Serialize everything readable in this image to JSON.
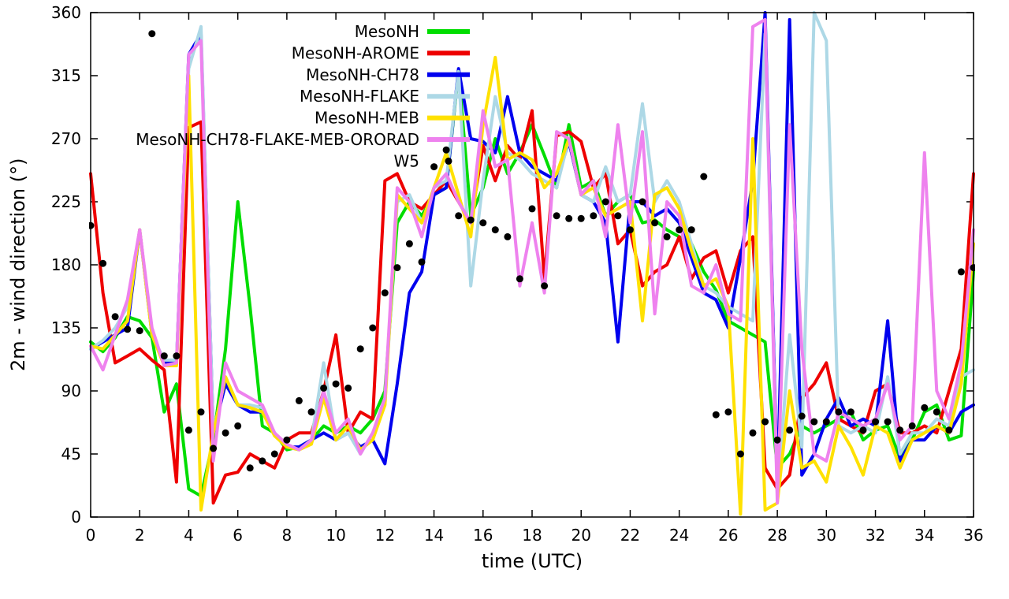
{
  "chart_data": {
    "type": "line",
    "title": "",
    "xlabel": "time (UTC)",
    "ylabel": "2m - wind direction (°)",
    "x_range": [
      0,
      36
    ],
    "y_range": [
      0,
      360
    ],
    "x_tick_step": 2,
    "y_tick_step": 45,
    "grid": false,
    "legend_position": "top-center-inside",
    "x_start": 0,
    "x_step": 0.5,
    "series": [
      {
        "name": "MesoNH",
        "color": "#00dd00",
        "style": "line",
        "values": [
          125,
          118,
          128,
          143,
          140,
          128,
          75,
          95,
          20,
          15,
          55,
          120,
          225,
          150,
          65,
          60,
          48,
          50,
          55,
          65,
          60,
          65,
          60,
          70,
          90,
          210,
          225,
          215,
          230,
          235,
          318,
          215,
          235,
          270,
          245,
          260,
          280,
          258,
          235,
          280,
          235,
          240,
          215,
          225,
          230,
          210,
          212,
          205,
          200,
          195,
          175,
          162,
          140,
          135,
          130,
          125,
          35,
          45,
          65,
          60,
          65,
          70,
          75,
          55,
          62,
          65,
          42,
          55,
          75,
          80,
          55,
          58,
          175
        ]
      },
      {
        "name": "MesoNH-AROME",
        "color": "#ee0000",
        "style": "line",
        "values": [
          245,
          160,
          110,
          115,
          120,
          112,
          105,
          25,
          278,
          282,
          10,
          30,
          32,
          45,
          40,
          35,
          55,
          60,
          60,
          90,
          130,
          60,
          75,
          70,
          240,
          245,
          225,
          220,
          230,
          240,
          225,
          210,
          265,
          240,
          265,
          255,
          290,
          170,
          272,
          275,
          268,
          235,
          245,
          195,
          205,
          165,
          175,
          180,
          200,
          170,
          185,
          190,
          160,
          190,
          200,
          35,
          20,
          30,
          85,
          95,
          110,
          70,
          65,
          60,
          90,
          95,
          60,
          60,
          65,
          60,
          90,
          120,
          245
        ]
      },
      {
        "name": "MesoNH-CH78",
        "color": "#0000ee",
        "style": "line",
        "values": [
          120,
          125,
          130,
          135,
          205,
          130,
          110,
          110,
          330,
          345,
          60,
          95,
          80,
          75,
          75,
          60,
          50,
          50,
          55,
          60,
          55,
          60,
          50,
          55,
          38,
          95,
          160,
          175,
          230,
          235,
          320,
          270,
          268,
          260,
          300,
          260,
          250,
          245,
          240,
          268,
          230,
          225,
          210,
          125,
          225,
          225,
          215,
          220,
          210,
          185,
          160,
          155,
          135,
          185,
          240,
          360,
          20,
          355,
          30,
          45,
          70,
          85,
          65,
          70,
          65,
          140,
          40,
          55,
          55,
          65,
          60,
          75,
          80
        ]
      },
      {
        "name": "MesoNH-FLAKE",
        "color": "#add8e6",
        "style": "line",
        "values": [
          120,
          126,
          135,
          150,
          205,
          130,
          112,
          112,
          320,
          350,
          60,
          100,
          80,
          80,
          78,
          60,
          50,
          48,
          55,
          110,
          55,
          60,
          45,
          60,
          80,
          225,
          230,
          210,
          235,
          240,
          318,
          165,
          240,
          300,
          260,
          255,
          245,
          240,
          235,
          270,
          230,
          225,
          250,
          225,
          230,
          295,
          225,
          240,
          225,
          195,
          165,
          160,
          150,
          145,
          140,
          345,
          15,
          130,
          50,
          360,
          340,
          65,
          60,
          65,
          60,
          100,
          45,
          60,
          60,
          70,
          65,
          100,
          105
        ]
      },
      {
        "name": "MesoNH-MEB",
        "color": "#ffe100",
        "style": "line",
        "values": [
          122,
          120,
          130,
          140,
          205,
          130,
          108,
          108,
          315,
          5,
          60,
          100,
          80,
          78,
          75,
          58,
          50,
          48,
          52,
          85,
          55,
          65,
          48,
          55,
          80,
          230,
          220,
          210,
          235,
          260,
          230,
          200,
          280,
          328,
          255,
          260,
          255,
          235,
          245,
          270,
          230,
          235,
          215,
          220,
          225,
          140,
          230,
          235,
          220,
          190,
          165,
          170,
          150,
          2,
          270,
          5,
          10,
          90,
          35,
          40,
          25,
          65,
          50,
          30,
          65,
          60,
          35,
          55,
          60,
          65,
          60,
          95,
          195
        ]
      },
      {
        "name": "MesoNH-CH78-FLAKE-MEB-ORORAD",
        "color": "#ee82ee",
        "style": "line",
        "values": [
          122,
          105,
          130,
          155,
          205,
          135,
          108,
          110,
          330,
          340,
          40,
          110,
          90,
          85,
          80,
          60,
          52,
          48,
          55,
          90,
          60,
          70,
          45,
          60,
          85,
          235,
          225,
          200,
          235,
          245,
          225,
          210,
          290,
          250,
          255,
          165,
          210,
          160,
          275,
          270,
          230,
          240,
          200,
          280,
          210,
          275,
          145,
          225,
          215,
          165,
          160,
          180,
          145,
          140,
          350,
          355,
          10,
          280,
          120,
          45,
          40,
          75,
          70,
          65,
          70,
          95,
          55,
          65,
          260,
          90,
          70,
          110,
          205
        ]
      },
      {
        "name": "W5",
        "color": "#000000",
        "style": "scatter",
        "values": [
          208,
          181,
          143,
          134,
          133,
          345,
          115,
          115,
          62,
          75,
          49,
          60,
          65,
          35,
          40,
          45,
          55,
          83,
          75,
          92,
          95,
          92,
          120,
          135,
          160,
          178,
          195,
          182,
          250,
          262,
          215,
          212,
          210,
          205,
          200,
          170,
          220,
          165,
          215,
          213,
          213,
          215,
          225,
          215,
          205,
          225,
          210,
          200,
          205,
          205,
          243,
          73,
          75,
          45,
          60,
          68,
          55,
          62,
          72,
          68,
          68,
          75,
          75,
          62,
          68,
          68,
          62,
          65,
          78,
          75,
          62,
          175,
          178
        ]
      }
    ],
    "x_ticks": [
      0,
      2,
      4,
      6,
      8,
      10,
      12,
      14,
      16,
      18,
      20,
      22,
      24,
      26,
      28,
      30,
      32,
      34,
      36
    ],
    "y_ticks": [
      0,
      45,
      90,
      135,
      180,
      225,
      270,
      315,
      360
    ]
  }
}
